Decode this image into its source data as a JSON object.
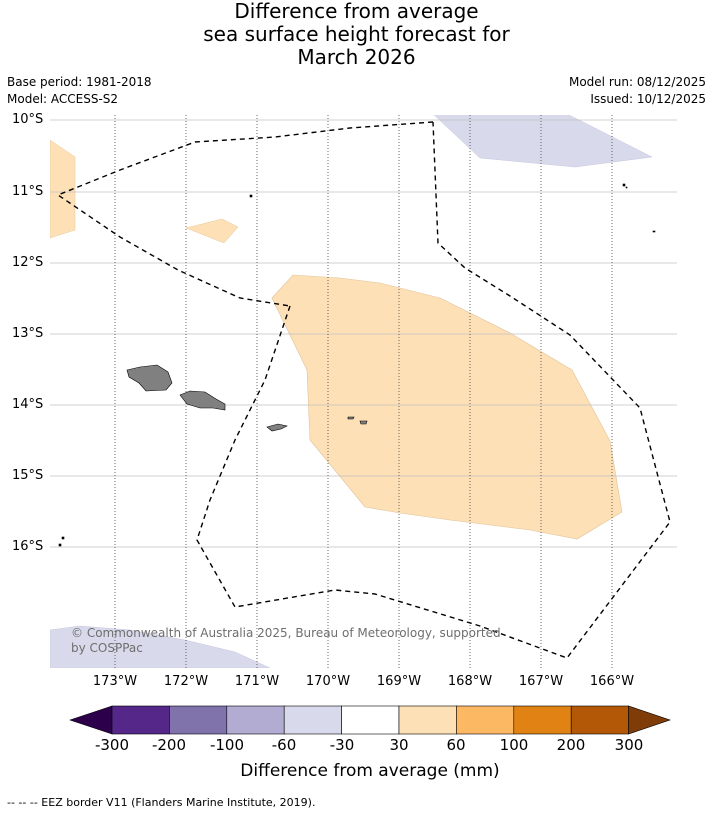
{
  "title": {
    "line1": "Difference from average",
    "line2": "sea surface height forecast for",
    "line3": "March 2026"
  },
  "meta": {
    "base_period": "Base period: 1981-2018",
    "model": "Model: ACCESS-S2",
    "model_run": "Model run: 08/12/2025",
    "issued": "Issued: 10/12/2025"
  },
  "axes": {
    "lat_labels": [
      "10°S",
      "11°S",
      "12°S",
      "13°S",
      "14°S",
      "15°S",
      "16°S"
    ],
    "lon_labels": [
      "173°W",
      "172°W",
      "171°W",
      "170°W",
      "169°W",
      "168°W",
      "167°W",
      "166°W"
    ]
  },
  "credit": {
    "line1": "© Commonwealth of Australia 2025, Bureau of Meteorology, supported",
    "line2": "by COSPPac"
  },
  "colorbar": {
    "title": "Difference from average (mm)",
    "tick_labels": [
      "-300",
      "-200",
      "-100",
      "-60",
      "-30",
      "30",
      "60",
      "100",
      "200",
      "300"
    ],
    "colors": {
      "under": "#2d004b",
      "c1": "#542788",
      "c2": "#8073ac",
      "c3": "#b2abd2",
      "c4": "#d8daeb",
      "c5": "#ffffff",
      "c6": "#fee0b6",
      "c7": "#fdb863",
      "c8": "#e08214",
      "c9": "#b35806",
      "over": "#7f3b08"
    }
  },
  "footer": {
    "eez_note": "--  --  -- EEZ border V11 (Flanders Marine Institute, 2019)."
  }
}
